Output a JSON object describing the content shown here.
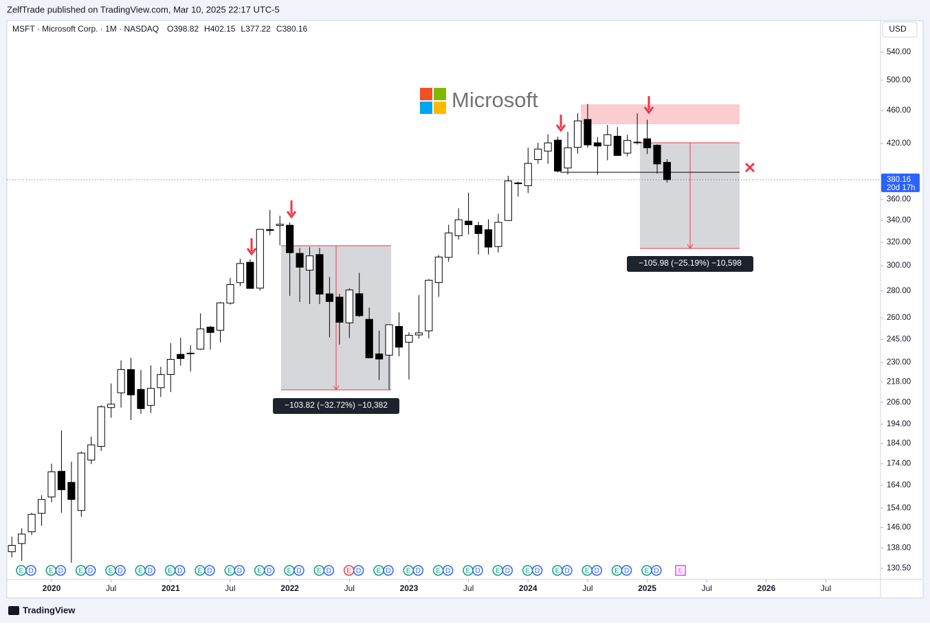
{
  "header": {
    "publisher_line": "ZelfTrade published on TradingView.com, Mar 10, 2025 22:17 UTC-5",
    "footer_brand": "TradingView"
  },
  "chart_data": {
    "type": "candlestick",
    "symbol_line": "MSFT · Microsoft Corp. · 1M · NASDAQ",
    "ohlc_labels": [
      "O",
      "H",
      "L",
      "C"
    ],
    "currency": "USD",
    "countdown": "20d 17h",
    "logo_text": "Microsoft",
    "event_icons": [
      "E",
      "D"
    ],
    "annotations": [
      "−103.82 (−32.72%) −10,382",
      "−105.98 (−25.19%) −10,598"
    ],
    "log_scale": true,
    "up_color": "#ffffff",
    "down_color": "#000000",
    "x": [
      "2019-09",
      "2019-10",
      "2019-11",
      "2019-12",
      "2020-01",
      "2020-02",
      "2020-03",
      "2020-04",
      "2020-05",
      "2020-06",
      "2020-07",
      "2020-08",
      "2020-09",
      "2020-10",
      "2020-11",
      "2020-12",
      "2021-01",
      "2021-02",
      "2021-03",
      "2021-04",
      "2021-05",
      "2021-06",
      "2021-07",
      "2021-08",
      "2021-09",
      "2021-10",
      "2021-11",
      "2021-12",
      "2022-01",
      "2022-02",
      "2022-03",
      "2022-04",
      "2022-05",
      "2022-06",
      "2022-07",
      "2022-08",
      "2022-09",
      "2022-10",
      "2022-11",
      "2022-12",
      "2023-01",
      "2023-02",
      "2023-03",
      "2023-04",
      "2023-05",
      "2023-06",
      "2023-07",
      "2023-08",
      "2023-09",
      "2023-10",
      "2023-11",
      "2023-12",
      "2024-01",
      "2024-02",
      "2024-03",
      "2024-04",
      "2024-05",
      "2024-06",
      "2024-07",
      "2024-08",
      "2024-09",
      "2024-10",
      "2024-11",
      "2024-12",
      "2025-01",
      "2025-02",
      "2025-03"
    ],
    "open": [
      136.6,
      139.7,
      144.3,
      151.8,
      158.8,
      170.4,
      165.3,
      153,
      175.8,
      182.5,
      203.1,
      211.5,
      225.5,
      213.5,
      204.3,
      214.5,
      222.5,
      235.1,
      235.9,
      238.5,
      253.4,
      251.2,
      270.7,
      286.4,
      302.9,
      282.1,
      331.4,
      335.1,
      335.4,
      310.4,
      296.4,
      309.4,
      277.7,
      275.2,
      256.4,
      277.8,
      258.9,
      235.4,
      234.6,
      253.9,
      243.1,
      248,
      250.8,
      286.5,
      307,
      325.9,
      339.2,
      335.2,
      331.3,
      316.3,
      339.8,
      376.8,
      373.9,
      401.8,
      411.3,
      423.9,
      392.6,
      415.6,
      448.7,
      420.8,
      417.9,
      428.5,
      409,
      421.6,
      425.5,
      418,
      398.82
    ],
    "high": [
      142.4,
      145.7,
      152,
      159.6,
      174.1,
      190.7,
      175,
      180,
      187.5,
      204.4,
      217,
      231.2,
      232.9,
      225.2,
      228.1,
      227.2,
      242.6,
      246.1,
      241.1,
      263.2,
      254.4,
      271.6,
      290.2,
      305.8,
      305.3,
      332,
      349.7,
      344.3,
      338,
      315.1,
      315.9,
      315.1,
      290.9,
      277.7,
      282,
      294.2,
      267.4,
      251,
      255.3,
      263.9,
      249.8,
      276.8,
      289.3,
      308.9,
      335.9,
      351.5,
      366.8,
      338.5,
      340.9,
      346.2,
      384.3,
      378.2,
      415.3,
      420.8,
      430.8,
      427.9,
      433.6,
      456.2,
      468.4,
      427.5,
      441.9,
      439.2,
      430.1,
      456.2,
      448.4,
      418.9,
      402.15
    ],
    "low": [
      134.5,
      133.2,
      143,
      146.7,
      156.5,
      152,
      132.5,
      150.4,
      173.8,
      180.2,
      197.5,
      203.1,
      196.3,
      199.6,
      200.1,
      209.1,
      211.9,
      227.9,
      224.3,
      238.1,
      238.1,
      243,
      269.6,
      283.7,
      281.6,
      280.3,
      326.4,
      317.3,
      276.1,
      271.5,
      270,
      270,
      246.4,
      241.5,
      245.9,
      260.7,
      232.7,
      219.1,
      213.4,
      233.9,
      219.4,
      245.5,
      245.6,
      275.4,
      303.4,
      322.5,
      327,
      309.5,
      309.5,
      311.2,
      339.6,
      362.9,
      366.5,
      397.2,
      397.2,
      388,
      385.6,
      408.5,
      415.2,
      385.6,
      401,
      405.9,
      405.6,
      418.7,
      408,
      386.6,
      377.22
    ],
    "close": [
      139,
      143.4,
      151.4,
      157.7,
      170.2,
      162,
      157.7,
      179.2,
      183.3,
      203.5,
      205,
      225.5,
      210.3,
      202.5,
      214.1,
      222.4,
      231.9,
      232.4,
      235.8,
      252.2,
      249.7,
      270.9,
      284.9,
      301.9,
      281.9,
      331.6,
      330.6,
      336.3,
      311,
      298.8,
      308.3,
      277.5,
      271.9,
      256.8,
      280.7,
      261.5,
      232.9,
      232.1,
      255.1,
      239.8,
      247.8,
      249.4,
      288.3,
      307.3,
      328.4,
      340.5,
      335.9,
      327.8,
      315.8,
      338.1,
      378.9,
      376,
      397.6,
      413.6,
      420.7,
      389.3,
      415.1,
      447,
      418.4,
      417.1,
      430.3,
      406.4,
      423.5,
      421.5,
      415.1,
      397,
      380.16
    ],
    "xlim": [
      "2019-09",
      "2026-12"
    ],
    "xticks": [
      {
        "value": "2020-01",
        "label": "2020"
      },
      {
        "value": "2020-07",
        "label": "Jul"
      },
      {
        "value": "2021-01",
        "label": "2021"
      },
      {
        "value": "2021-07",
        "label": "Jul"
      },
      {
        "value": "2022-01",
        "label": "2022"
      },
      {
        "value": "2022-07",
        "label": "Jul"
      },
      {
        "value": "2023-01",
        "label": "2023"
      },
      {
        "value": "2023-07",
        "label": "Jul"
      },
      {
        "value": "2024-01",
        "label": "2024"
      },
      {
        "value": "2024-07",
        "label": "Jul"
      },
      {
        "value": "2025-01",
        "label": "2025"
      },
      {
        "value": "2025-07",
        "label": "Jul"
      },
      {
        "value": "2026-01",
        "label": "2026"
      },
      {
        "value": "2026-07",
        "label": "Jul"
      }
    ],
    "ylim": [
      126.6,
      589
    ],
    "yticks": [
      {
        "value": 130.5,
        "label": "130.50"
      },
      {
        "value": 138,
        "label": "138.00"
      },
      {
        "value": 146,
        "label": "146.00"
      },
      {
        "value": 154,
        "label": "154.00"
      },
      {
        "value": 164,
        "label": "164.00"
      },
      {
        "value": 174,
        "label": "174.00"
      },
      {
        "value": 184,
        "label": "184.00"
      },
      {
        "value": 194,
        "label": "194.00"
      },
      {
        "value": 206,
        "label": "206.00"
      },
      {
        "value": 218,
        "label": "218.00"
      },
      {
        "value": 230,
        "label": "230.00"
      },
      {
        "value": 245,
        "label": "245.00"
      },
      {
        "value": 260,
        "label": "260.00"
      },
      {
        "value": 280,
        "label": "280.00"
      },
      {
        "value": 300,
        "label": "300.00"
      },
      {
        "value": 320,
        "label": "320.00"
      },
      {
        "value": 340,
        "label": "340.00"
      },
      {
        "value": 360,
        "label": "360.00"
      },
      {
        "value": 420,
        "label": "420.00"
      },
      {
        "value": 460,
        "label": "460.00"
      },
      {
        "value": 500,
        "label": "500.00"
      },
      {
        "value": 540,
        "label": "540.00"
      }
    ]
  }
}
